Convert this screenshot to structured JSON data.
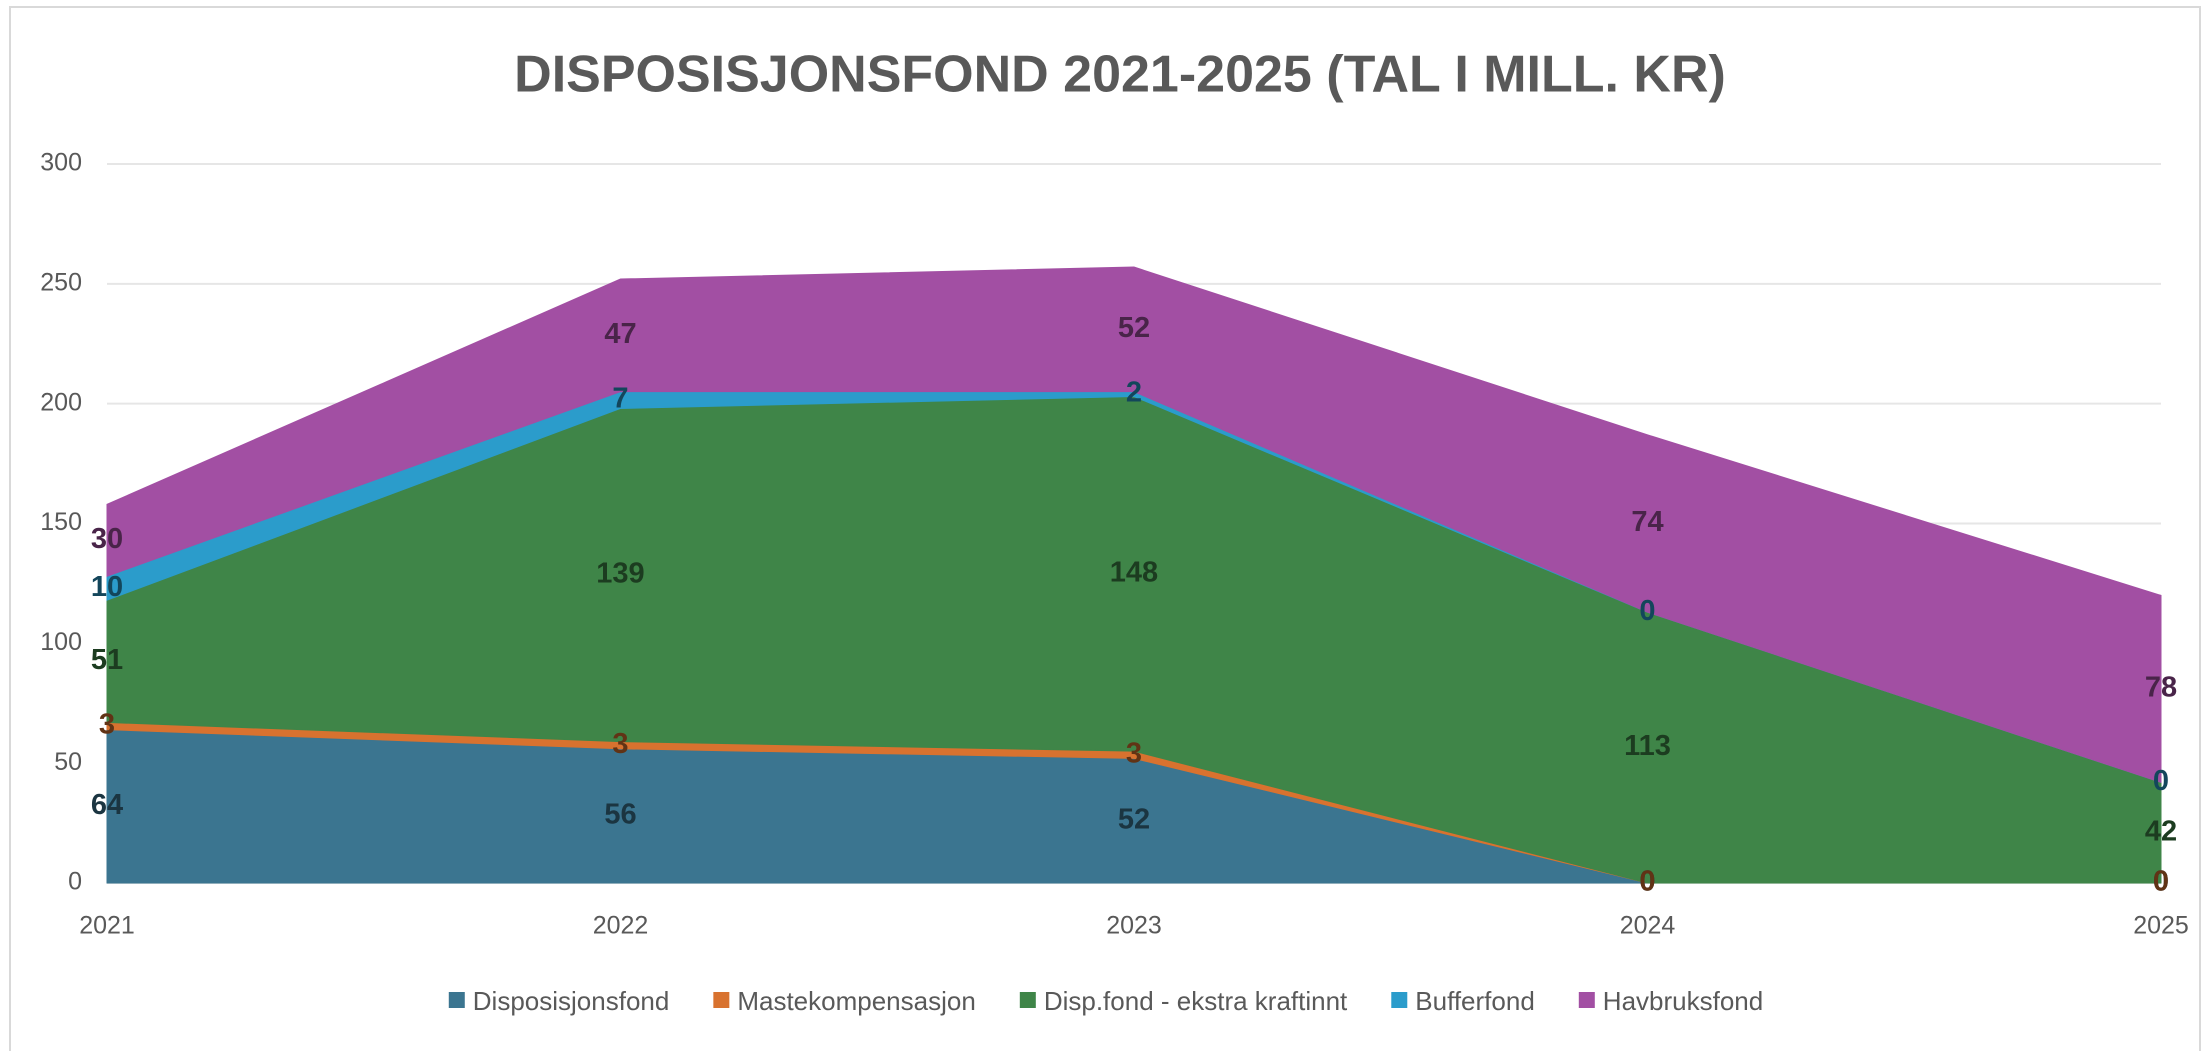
{
  "chart_data": {
    "type": "stacked_area",
    "title": "DISPOSISJONSFOND 2021-2025 (TAL I MILL. KR)",
    "categories": [
      "2021",
      "2022",
      "2023",
      "2024",
      "2025"
    ],
    "series": [
      {
        "name": "Disposisjonsfond",
        "color": "#3b7590",
        "values": [
          64,
          56,
          52,
          0,
          0
        ]
      },
      {
        "name": "Mastekompensasjon",
        "color": "#d8722f",
        "values": [
          3,
          3,
          3,
          0,
          0
        ]
      },
      {
        "name": "Disp.fond - ekstra kraftinnt",
        "color": "#3f8548",
        "values": [
          51,
          139,
          148,
          113,
          42
        ]
      },
      {
        "name": "Bufferfond",
        "color": "#2b9ccb",
        "values": [
          10,
          7,
          2,
          0,
          0
        ]
      },
      {
        "name": "Havbruksfond",
        "color": "#a24fa3",
        "values": [
          30,
          47,
          52,
          74,
          78
        ]
      }
    ],
    "ylim": [
      0,
      300
    ],
    "yticks": [
      0,
      50,
      100,
      150,
      200,
      250,
      300
    ],
    "grid": true,
    "legend": "bottom"
  }
}
